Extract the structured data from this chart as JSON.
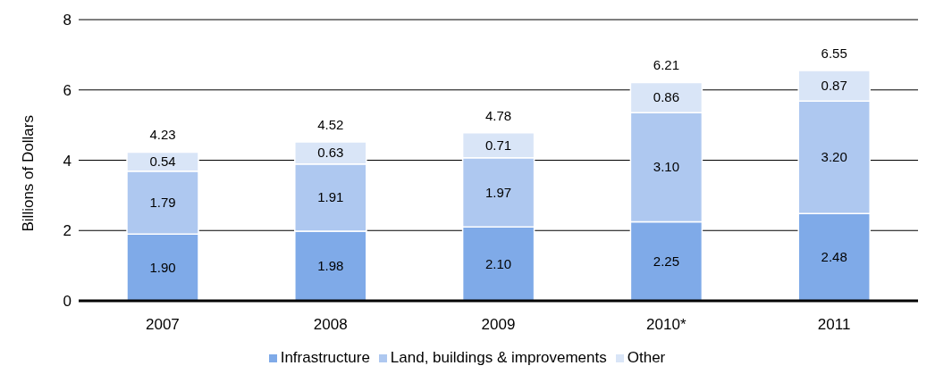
{
  "chart_data": {
    "type": "bar",
    "stacked": true,
    "ylabel": "Billions of Dollars",
    "categories": [
      "2007",
      "2008",
      "2009",
      "2010*",
      "2011"
    ],
    "series": [
      {
        "name": "Infrastructure",
        "color": "#7faae8",
        "values": [
          1.9,
          1.98,
          2.1,
          2.25,
          2.48
        ],
        "value_labels": [
          "1.90",
          "1.98",
          "2.10",
          "2.25",
          "2.48"
        ]
      },
      {
        "name": "Land, buildings & improvements",
        "color": "#aec8f0",
        "values": [
          1.79,
          1.91,
          1.97,
          3.1,
          3.2
        ],
        "value_labels": [
          "1.79",
          "1.91",
          "1.97",
          "3.10",
          "3.20"
        ]
      },
      {
        "name": "Other",
        "color": "#d9e5f7",
        "values": [
          0.54,
          0.63,
          0.71,
          0.86,
          0.87
        ],
        "value_labels": [
          "0.54",
          "0.63",
          "0.71",
          "0.86",
          "0.87"
        ]
      }
    ],
    "totals": [
      "4.23",
      "4.52",
      "4.78",
      "6.21",
      "6.55"
    ],
    "ylim": [
      0,
      8
    ],
    "yticks": [
      0,
      2,
      4,
      6,
      8
    ],
    "grid": "y",
    "legend": "bottom"
  }
}
